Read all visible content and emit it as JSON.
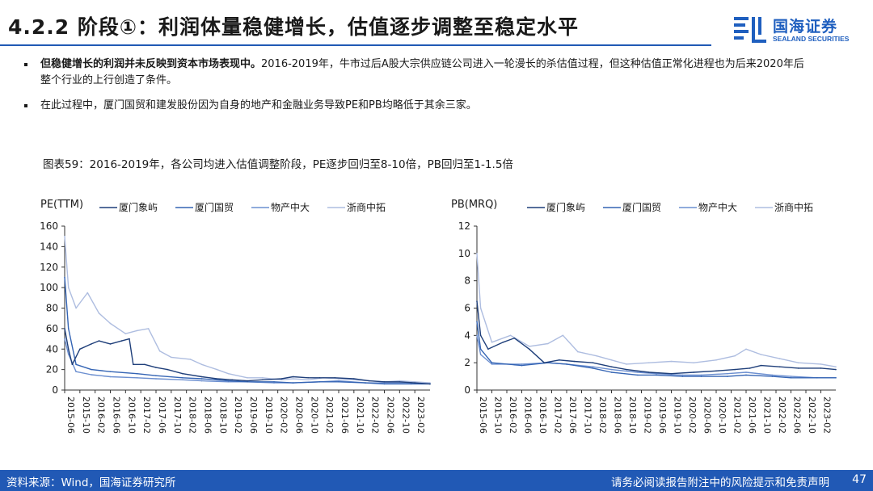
{
  "header": {
    "title": "4.2.2 阶段①：利润体量稳健增长，估值逐步调整至稳定水平",
    "logo_cn": "国海证券",
    "logo_en": "SEALAND SECURITIES"
  },
  "bullets": [
    {
      "bold": "但稳健增长的利润并未反映到资本市场表现中。",
      "text": "2016-2019年，牛市过后A股大宗供应链公司进入一轮漫长的杀估值过程，但这种估值正常化进程也为后来2020年后整个行业的上行创造了条件。"
    },
    {
      "bold": "",
      "text": "在此过程中，厦门国贸和建发股份因为自身的地产和金融业务导致PE和PB均略低于其余三家。"
    }
  ],
  "figure_caption": "图表59：2016-2019年，各公司均进入估值调整阶段，PE逐步回归至8-10倍，PB回归至1-1.5倍",
  "colors": {
    "brand": "#2159b5",
    "xiamen_xiangyu": "#1f3f7a",
    "xiamen_guomao": "#3464b4",
    "wuchan_zhongda": "#6c8fd0",
    "zheshang_zhongtuo": "#aebde0"
  },
  "chart_data": [
    {
      "type": "line",
      "ylabel": "PE(TTM)",
      "ylim": [
        0,
        160
      ],
      "yticks": [
        "0",
        "20",
        "40",
        "60",
        "80",
        "100",
        "120",
        "140",
        "160"
      ],
      "x_tick_labels": [
        "2015-06",
        "2015-10",
        "2016-02",
        "2016-06",
        "2016-10",
        "2017-02",
        "2017-06",
        "2017-10",
        "2018-02",
        "2018-06",
        "2018-10",
        "2019-02",
        "2019-06",
        "2019-10",
        "2020-02",
        "2020-06",
        "2020-10",
        "2021-02",
        "2021-06",
        "2021-10",
        "2022-02",
        "2022-06",
        "2022-10",
        "2023-02"
      ],
      "x_range": [
        "2015-06",
        "2023-06"
      ],
      "series": [
        {
          "name": "厦门象屿",
          "x": [
            "2015-06",
            "2015-07",
            "2015-08",
            "2015-10",
            "2016-01",
            "2016-03",
            "2016-06",
            "2016-09",
            "2016-11",
            "2016-12",
            "2017-03",
            "2017-06",
            "2017-09",
            "2018-01",
            "2018-06",
            "2018-10",
            "2019-02",
            "2019-06",
            "2019-10",
            "2020-03",
            "2020-06",
            "2020-10",
            "2021-01",
            "2021-05",
            "2021-10",
            "2022-02",
            "2022-06",
            "2022-10",
            "2023-02",
            "2023-06"
          ],
          "values": [
            60,
            40,
            25,
            40,
            45,
            48,
            45,
            48,
            50,
            25,
            25,
            22,
            20,
            16,
            13,
            11,
            10,
            9,
            10,
            11,
            13,
            12,
            12,
            12,
            11,
            9,
            8,
            8,
            7,
            6
          ]
        },
        {
          "name": "厦门国贸",
          "x": [
            "2015-06",
            "2015-07",
            "2015-09",
            "2016-01",
            "2016-06",
            "2017-01",
            "2017-06",
            "2018-01",
            "2018-06",
            "2019-01",
            "2019-06",
            "2020-01",
            "2020-06",
            "2021-01",
            "2021-06",
            "2022-01",
            "2022-06",
            "2023-01",
            "2023-06"
          ],
          "values": [
            110,
            60,
            25,
            20,
            18,
            16,
            14,
            12,
            11,
            9,
            8,
            8,
            7,
            8,
            8,
            7,
            6,
            6,
            6
          ]
        },
        {
          "name": "物产中大",
          "x": [
            "2015-06",
            "2015-07",
            "2015-09",
            "2016-01",
            "2016-06",
            "2017-01",
            "2017-06",
            "2018-01",
            "2018-06",
            "2019-01",
            "2019-06",
            "2020-01",
            "2020-06",
            "2021-01",
            "2021-06",
            "2022-01",
            "2022-06",
            "2023-01",
            "2023-06"
          ],
          "values": [
            50,
            35,
            18,
            15,
            13,
            12,
            11,
            10,
            9,
            8,
            8,
            7,
            7,
            8,
            9,
            7,
            7,
            7,
            6
          ]
        },
        {
          "name": "浙商中拓",
          "x": [
            "2015-06",
            "2015-07",
            "2015-09",
            "2015-12",
            "2016-03",
            "2016-06",
            "2016-10",
            "2017-01",
            "2017-04",
            "2017-07",
            "2017-10",
            "2018-03",
            "2018-06",
            "2018-10",
            "2019-01",
            "2019-06",
            "2019-10",
            "2020-03",
            "2020-06",
            "2020-10",
            "2021-02",
            "2021-06",
            "2021-10",
            "2022-02",
            "2022-06",
            "2022-10",
            "2023-02",
            "2023-06"
          ],
          "values": [
            150,
            100,
            80,
            95,
            75,
            65,
            55,
            58,
            60,
            38,
            32,
            30,
            25,
            20,
            16,
            12,
            12,
            10,
            11,
            10,
            12,
            11,
            10,
            9,
            8,
            9,
            8,
            7
          ]
        }
      ]
    },
    {
      "type": "line",
      "ylabel": "PB(MRQ)",
      "ylim": [
        0,
        12
      ],
      "yticks": [
        "0",
        "2",
        "4",
        "6",
        "8",
        "10",
        "12"
      ],
      "x_tick_labels": [
        "2015-06",
        "2015-10",
        "2016-02",
        "2016-06",
        "2016-10",
        "2017-02",
        "2017-06",
        "2017-10",
        "2018-02",
        "2018-06",
        "2018-10",
        "2019-02",
        "2019-06",
        "2019-10",
        "2020-02",
        "2020-06",
        "2020-10",
        "2021-02",
        "2021-06",
        "2021-10",
        "2022-02",
        "2022-06",
        "2022-10",
        "2023-02"
      ],
      "x_range": [
        "2015-06",
        "2023-06"
      ],
      "series": [
        {
          "name": "厦门象屿",
          "x": [
            "2015-06",
            "2015-07",
            "2015-09",
            "2016-01",
            "2016-04",
            "2016-08",
            "2016-12",
            "2017-04",
            "2017-08",
            "2018-01",
            "2018-06",
            "2018-10",
            "2019-04",
            "2019-10",
            "2020-04",
            "2020-10",
            "2021-03",
            "2021-07",
            "2021-10",
            "2022-03",
            "2022-08",
            "2023-02",
            "2023-06"
          ],
          "values": [
            6.5,
            4,
            3,
            3.5,
            3.8,
            3,
            2,
            2.2,
            2.1,
            2,
            1.7,
            1.5,
            1.3,
            1.2,
            1.3,
            1.4,
            1.5,
            1.6,
            1.8,
            1.7,
            1.6,
            1.6,
            1.5
          ]
        },
        {
          "name": "厦门国贸",
          "x": [
            "2015-06",
            "2015-07",
            "2015-10",
            "2016-06",
            "2017-01",
            "2017-06",
            "2018-01",
            "2018-06",
            "2019-01",
            "2019-06",
            "2020-01",
            "2020-06",
            "2021-01",
            "2021-06",
            "2022-01",
            "2022-06",
            "2023-01",
            "2023-06"
          ],
          "values": [
            5,
            3,
            2,
            1.8,
            2,
            1.9,
            1.6,
            1.3,
            1.1,
            1.1,
            1,
            1,
            1,
            1.1,
            1,
            0.9,
            0.9,
            0.9
          ]
        },
        {
          "name": "物产中大",
          "x": [
            "2015-06",
            "2015-07",
            "2015-10",
            "2016-06",
            "2017-01",
            "2017-06",
            "2018-01",
            "2018-06",
            "2019-01",
            "2019-06",
            "2020-01",
            "2020-06",
            "2021-01",
            "2021-06",
            "2022-01",
            "2022-06",
            "2023-01",
            "2023-06"
          ],
          "values": [
            4,
            2.6,
            1.9,
            1.9,
            2,
            1.9,
            1.7,
            1.5,
            1.3,
            1.2,
            1.1,
            1.1,
            1.2,
            1.3,
            1.1,
            1,
            0.9,
            0.9
          ]
        },
        {
          "name": "浙商中拓",
          "x": [
            "2015-06",
            "2015-07",
            "2015-10",
            "2016-03",
            "2016-08",
            "2017-01",
            "2017-05",
            "2017-09",
            "2018-02",
            "2018-06",
            "2018-10",
            "2019-04",
            "2019-10",
            "2020-04",
            "2020-10",
            "2021-03",
            "2021-06",
            "2021-10",
            "2022-03",
            "2022-08",
            "2023-02",
            "2023-06"
          ],
          "values": [
            10,
            6,
            3.5,
            4,
            3.2,
            3.4,
            4,
            2.8,
            2.5,
            2.2,
            1.9,
            2,
            2.1,
            2,
            2.2,
            2.5,
            3,
            2.6,
            2.3,
            2,
            1.9,
            1.7
          ]
        }
      ]
    }
  ],
  "footer": {
    "source": "资料来源：Wind，国海证券研究所",
    "disclaimer": "请务必阅读报告附注中的风险提示和免责声明",
    "page": "47"
  }
}
